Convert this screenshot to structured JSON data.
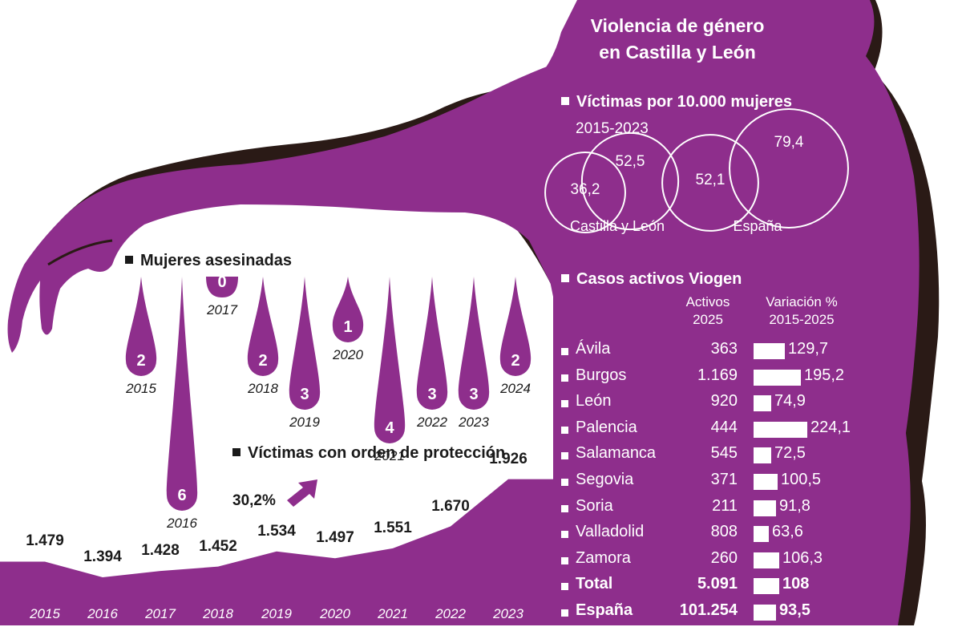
{
  "title_line1": "Violencia de género",
  "title_line2": "en Castilla y León",
  "colors": {
    "purple": "#8e2e8c",
    "dark": "#2a1a16",
    "white": "#ffffff"
  },
  "sections": {
    "victims_rate": "Víctimas por 10.000 mujeres",
    "victims_rate_period": "2015-2023",
    "murdered": "Mujeres asesinadas",
    "protection": "Víctimas con orden de protección",
    "viogen": "Casos activos Viogen"
  },
  "protection_change": "30,2%",
  "viogen_headers": {
    "active_l1": "Activos",
    "active_l2": "2025",
    "var_l1": "Variación %",
    "var_l2": "2015-2025"
  },
  "chart_data": [
    {
      "type": "bubble",
      "title": "Víctimas por 10.000 mujeres",
      "subtitle": "2015-2023",
      "groups": [
        {
          "name": "Castilla y León",
          "values": [
            36.2,
            52.5
          ],
          "labels": [
            "36,2",
            "52,5"
          ]
        },
        {
          "name": "España",
          "values": [
            52.1,
            79.4
          ],
          "labels": [
            "52,1",
            "79,4"
          ]
        }
      ]
    },
    {
      "type": "bar",
      "title": "Mujeres asesinadas",
      "categories": [
        "2015",
        "2016",
        "2017",
        "2018",
        "2019",
        "2020",
        "2021",
        "2022",
        "2023",
        "2024"
      ],
      "values": [
        2,
        6,
        0,
        2,
        3,
        1,
        4,
        3,
        3,
        2
      ]
    },
    {
      "type": "area",
      "title": "Víctimas con orden de protección",
      "categories": [
        "2015",
        "2016",
        "2017",
        "2018",
        "2019",
        "2020",
        "2021",
        "2022",
        "2023"
      ],
      "values": [
        1479,
        1394,
        1428,
        1452,
        1534,
        1497,
        1551,
        1670,
        1926
      ],
      "labels": [
        "1.479",
        "1.394",
        "1.428",
        "1.452",
        "1.534",
        "1.497",
        "1.551",
        "1.670",
        "1.926"
      ]
    },
    {
      "type": "table",
      "title": "Casos activos Viogen",
      "columns": [
        "Activos 2025",
        "Variación % 2015-2025"
      ],
      "rows": [
        {
          "name": "Ávila",
          "active": 363,
          "active_label": "363",
          "variation": 129.7,
          "variation_label": "129,7"
        },
        {
          "name": "Burgos",
          "active": 1169,
          "active_label": "1.169",
          "variation": 195.2,
          "variation_label": "195,2"
        },
        {
          "name": "León",
          "active": 920,
          "active_label": "920",
          "variation": 74.9,
          "variation_label": "74,9"
        },
        {
          "name": "Palencia",
          "active": 444,
          "active_label": "444",
          "variation": 224.1,
          "variation_label": "224,1"
        },
        {
          "name": "Salamanca",
          "active": 545,
          "active_label": "545",
          "variation": 72.5,
          "variation_label": "72,5"
        },
        {
          "name": "Segovia",
          "active": 371,
          "active_label": "371",
          "variation": 100.5,
          "variation_label": "100,5"
        },
        {
          "name": "Soria",
          "active": 211,
          "active_label": "211",
          "variation": 91.8,
          "variation_label": "91,8"
        },
        {
          "name": "Valladolid",
          "active": 808,
          "active_label": "808",
          "variation": 63.6,
          "variation_label": "63,6"
        },
        {
          "name": "Zamora",
          "active": 260,
          "active_label": "260",
          "variation": 106.3,
          "variation_label": "106,3"
        },
        {
          "name": "Total",
          "active": 5091,
          "active_label": "5.091",
          "variation": 108,
          "variation_label": "108",
          "bold": true
        },
        {
          "name": "España",
          "active": 101254,
          "active_label": "101.254",
          "variation": 93.5,
          "variation_label": "93,5",
          "bold": true
        }
      ]
    }
  ]
}
